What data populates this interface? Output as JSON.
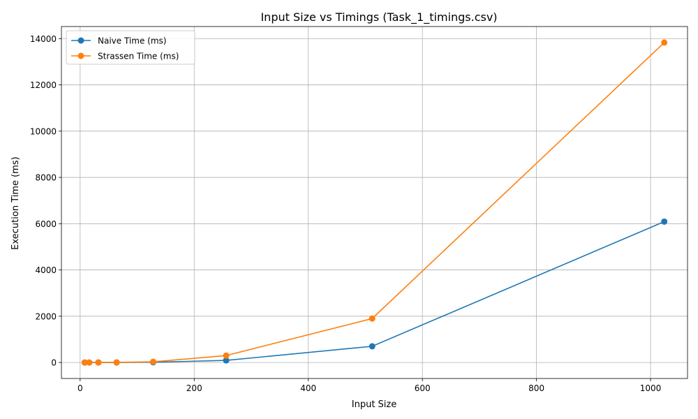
{
  "chart_data": {
    "type": "line",
    "title": "Input Size vs Timings (Task_1_timings.csv)",
    "xlabel": "Input Size",
    "ylabel": "Execution Time (ms)",
    "xlim": [
      -32.8,
      1064.8
    ],
    "ylim": [
      -691.6,
      14521.6
    ],
    "xticks": [
      0,
      200,
      400,
      600,
      800,
      1000
    ],
    "xtick_labels": [
      "0",
      "200",
      "400",
      "600",
      "800",
      "1000"
    ],
    "yticks": [
      0,
      2000,
      4000,
      6000,
      8000,
      10000,
      12000,
      14000
    ],
    "ytick_labels": [
      "0",
      "2000",
      "4000",
      "6000",
      "8000",
      "10000",
      "12000",
      "14000"
    ],
    "grid": true,
    "legend_position": "upper left",
    "x": [
      8,
      16,
      32,
      64,
      128,
      256,
      512,
      1024
    ],
    "series": [
      {
        "name": "Naive Time (ms)",
        "color": "#1f77b4",
        "values": [
          0,
          0,
          0,
          1,
          10,
          90,
          700,
          6090
        ]
      },
      {
        "name": "Strassen Time (ms)",
        "color": "#ff7f0e",
        "values": [
          0,
          0,
          1,
          4,
          30,
          300,
          1900,
          13830
        ]
      }
    ]
  }
}
